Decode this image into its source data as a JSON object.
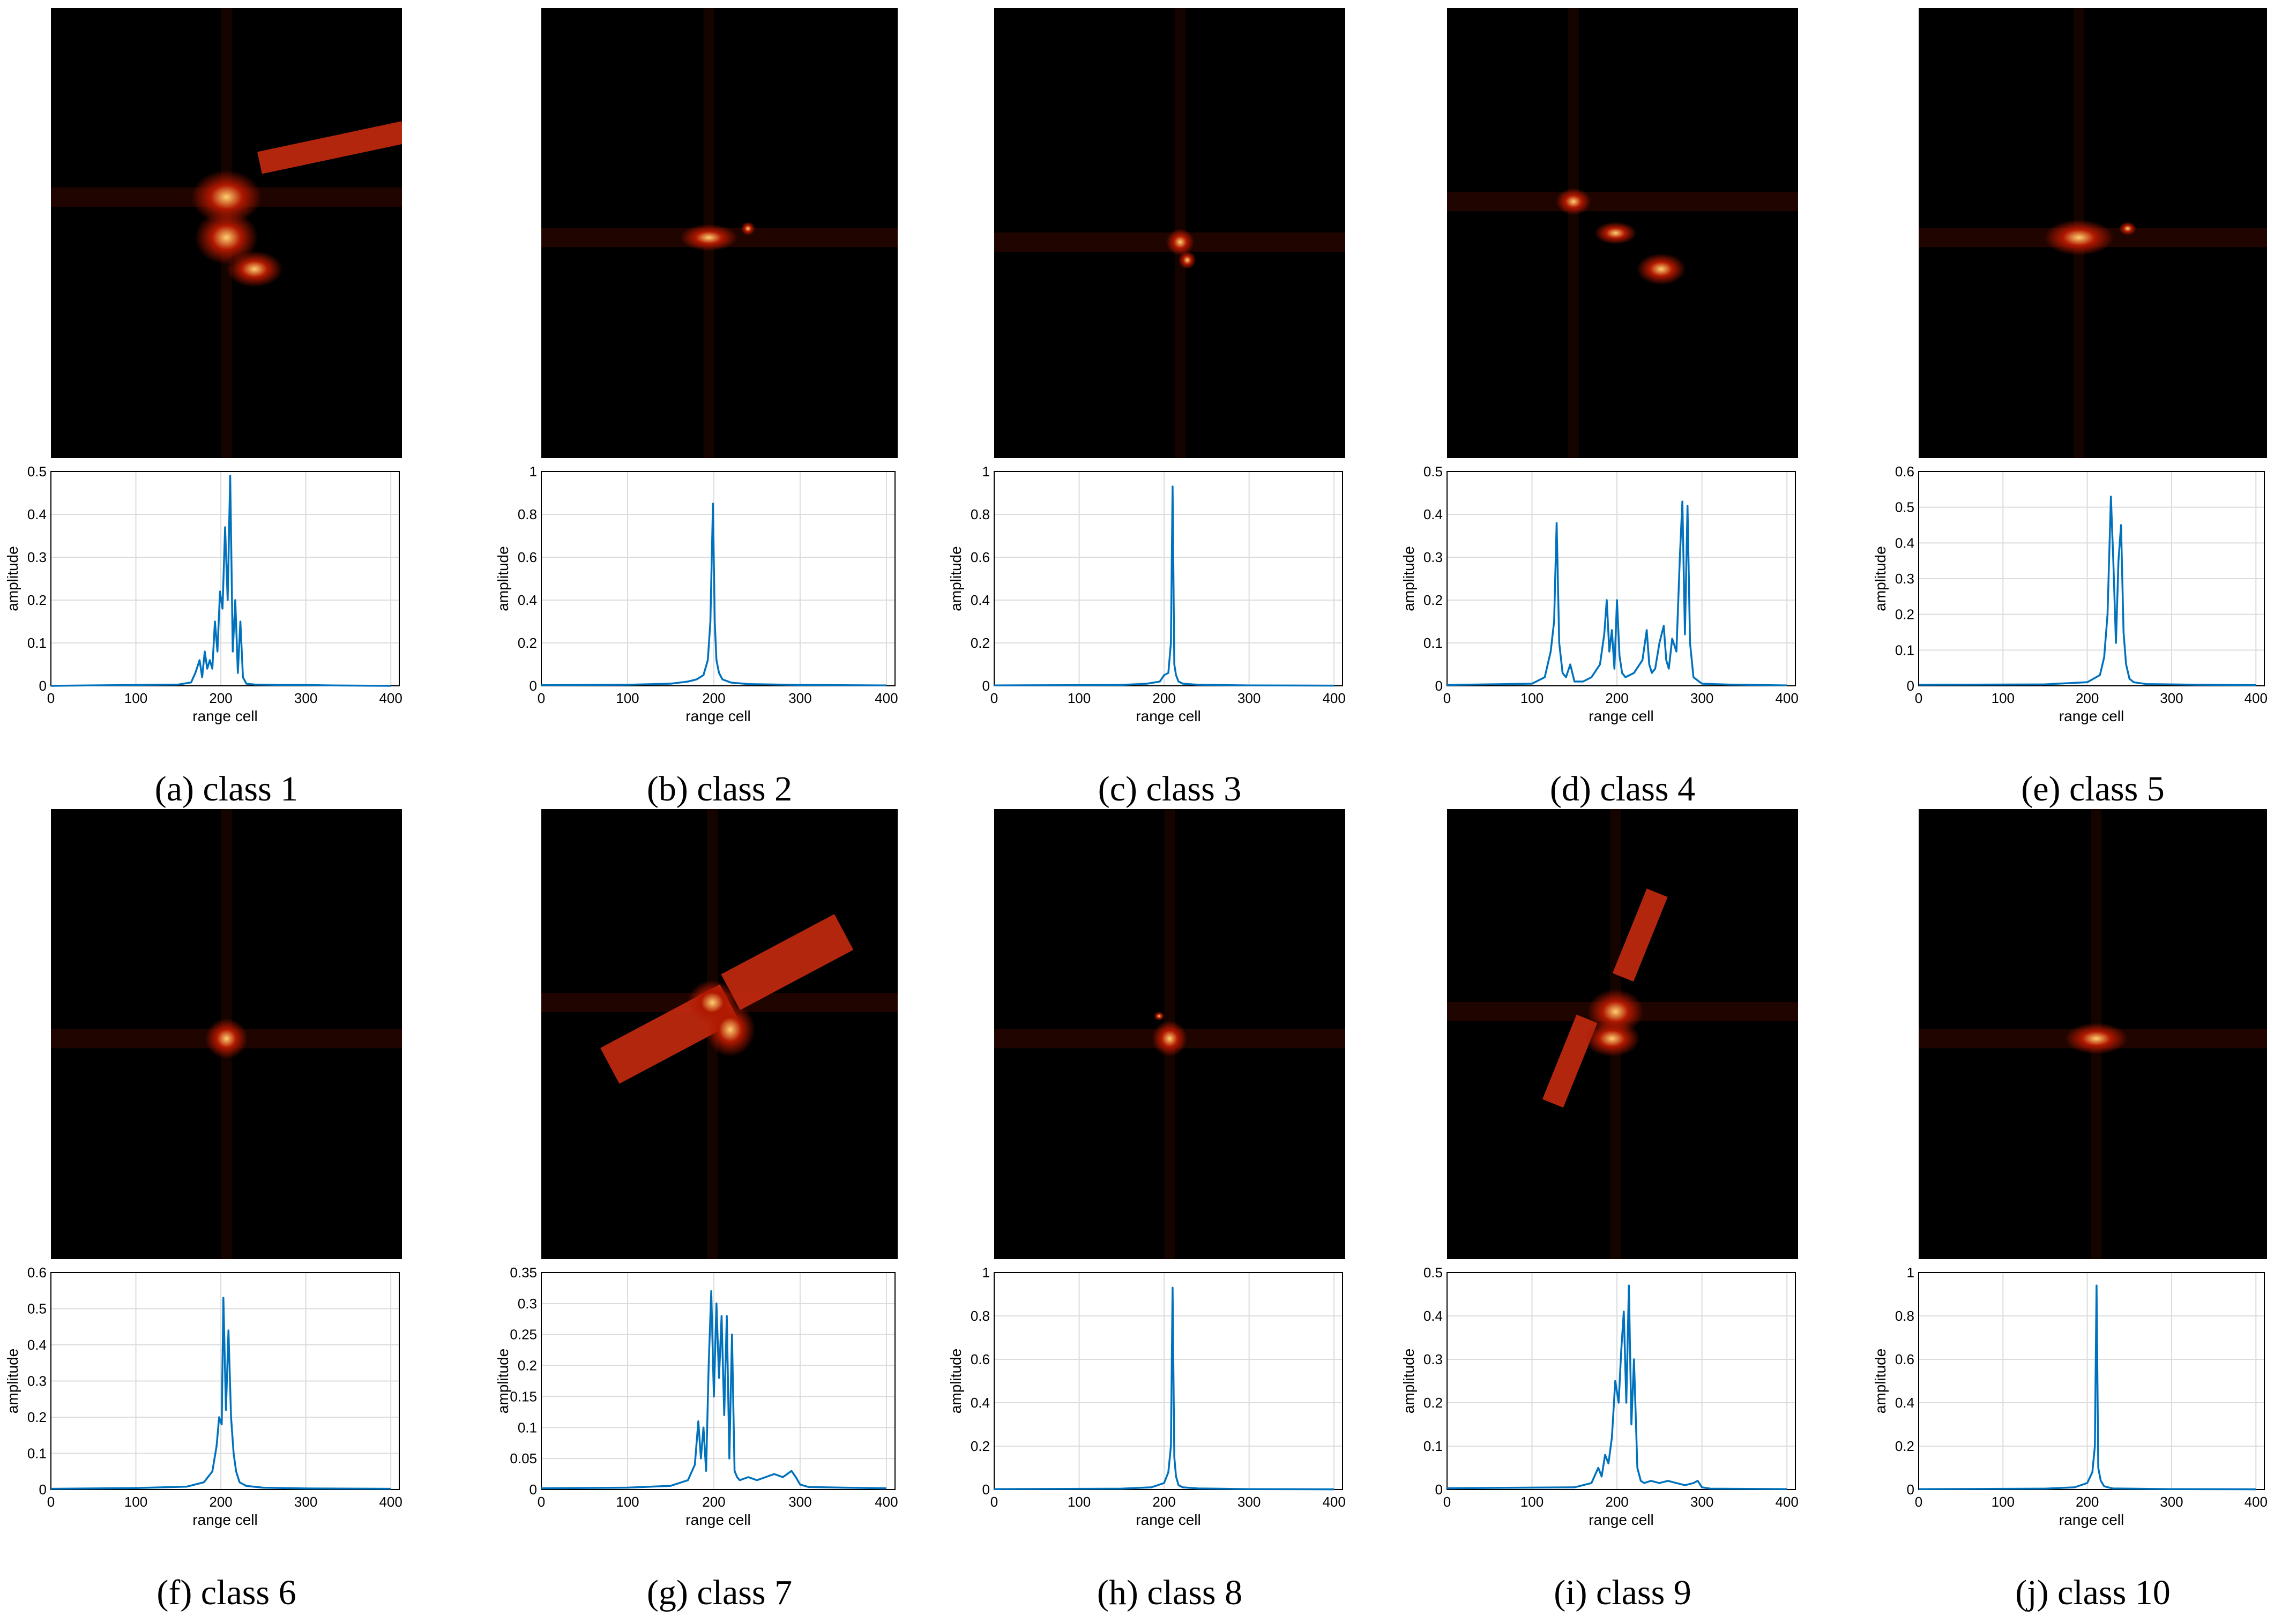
{
  "panels": [
    {
      "caption": "(a) class 1"
    },
    {
      "caption": "(b) class 2"
    },
    {
      "caption": "(c) class 3"
    },
    {
      "caption": "(d) class 4"
    },
    {
      "caption": "(e) class 5"
    },
    {
      "caption": "(f) class 6"
    },
    {
      "caption": "(g) class 7"
    },
    {
      "caption": "(h) class 8"
    },
    {
      "caption": "(i) class 9"
    },
    {
      "caption": "(j) class 10"
    }
  ],
  "colors": {
    "line": "#0072BD",
    "grid": "#dcdcdc",
    "image_bg": "#000000",
    "hot_mid": "#b01800",
    "hot_high": "#ffd070"
  },
  "chart_data": [
    {
      "type": "line",
      "panel": "a",
      "xlabel": "range cell",
      "ylabel": "amplitude",
      "xlim": [
        0,
        410
      ],
      "ylim": [
        0,
        0.5
      ],
      "xticks": [
        "0",
        "100",
        "200",
        "300",
        "400"
      ],
      "yticks": [
        "0",
        "0.1",
        "0.2",
        "0.3",
        "0.4",
        "0.5"
      ],
      "x": [
        0,
        150,
        165,
        170,
        175,
        178,
        181,
        184,
        187,
        190,
        193,
        196,
        199,
        202,
        205,
        208,
        211,
        214,
        217,
        220,
        223,
        226,
        230,
        240,
        270,
        300,
        330,
        400
      ],
      "values": [
        0,
        0.003,
        0.008,
        0.03,
        0.06,
        0.02,
        0.08,
        0.04,
        0.06,
        0.04,
        0.15,
        0.08,
        0.22,
        0.18,
        0.37,
        0.2,
        0.49,
        0.08,
        0.2,
        0.03,
        0.15,
        0.02,
        0.005,
        0.003,
        0.002,
        0.002,
        0.001,
        0
      ]
    },
    {
      "type": "line",
      "panel": "b",
      "xlabel": "range cell",
      "ylabel": "amplitude",
      "xlim": [
        0,
        410
      ],
      "ylim": [
        0,
        1
      ],
      "xticks": [
        "0",
        "100",
        "200",
        "300",
        "400"
      ],
      "yticks": [
        "0",
        "0.2",
        "0.4",
        "0.6",
        "0.8",
        "1"
      ],
      "x": [
        0,
        100,
        150,
        170,
        180,
        188,
        193,
        196,
        199,
        201,
        203,
        206,
        210,
        220,
        240,
        300,
        400
      ],
      "values": [
        0.003,
        0.005,
        0.01,
        0.02,
        0.03,
        0.05,
        0.12,
        0.3,
        0.85,
        0.3,
        0.12,
        0.06,
        0.03,
        0.015,
        0.008,
        0.004,
        0.002
      ]
    },
    {
      "type": "line",
      "panel": "c",
      "xlabel": "range cell",
      "ylabel": "amplitude",
      "xlim": [
        0,
        410
      ],
      "ylim": [
        0,
        1
      ],
      "xticks": [
        "0",
        "100",
        "200",
        "300",
        "400"
      ],
      "yticks": [
        "0",
        "0.2",
        "0.4",
        "0.6",
        "0.8",
        "1"
      ],
      "x": [
        0,
        150,
        180,
        195,
        200,
        205,
        208,
        210,
        212,
        214,
        217,
        222,
        240,
        300,
        400
      ],
      "values": [
        0.002,
        0.004,
        0.01,
        0.02,
        0.05,
        0.06,
        0.2,
        0.93,
        0.1,
        0.05,
        0.02,
        0.01,
        0.005,
        0.002,
        0.001
      ]
    },
    {
      "type": "line",
      "panel": "d",
      "xlabel": "range cell",
      "ylabel": "amplitude",
      "xlim": [
        0,
        410
      ],
      "ylim": [
        0,
        0.5
      ],
      "xticks": [
        "0",
        "100",
        "200",
        "300",
        "400"
      ],
      "yticks": [
        "0",
        "0.1",
        "0.2",
        "0.3",
        "0.4",
        "0.5"
      ],
      "x": [
        0,
        100,
        115,
        122,
        126,
        129,
        132,
        136,
        140,
        145,
        150,
        160,
        170,
        180,
        185,
        188,
        191,
        194,
        197,
        200,
        203,
        206,
        210,
        220,
        230,
        235,
        238,
        241,
        245,
        250,
        255,
        258,
        261,
        265,
        270,
        274,
        277,
        280,
        283,
        286,
        290,
        300,
        330,
        400
      ],
      "values": [
        0.002,
        0.005,
        0.02,
        0.08,
        0.15,
        0.38,
        0.1,
        0.03,
        0.02,
        0.05,
        0.01,
        0.01,
        0.02,
        0.05,
        0.12,
        0.2,
        0.08,
        0.13,
        0.04,
        0.2,
        0.07,
        0.03,
        0.02,
        0.03,
        0.06,
        0.13,
        0.05,
        0.03,
        0.04,
        0.1,
        0.14,
        0.06,
        0.04,
        0.11,
        0.08,
        0.3,
        0.43,
        0.12,
        0.42,
        0.1,
        0.02,
        0.005,
        0.003,
        0.001
      ]
    },
    {
      "type": "line",
      "panel": "e",
      "xlabel": "range cell",
      "ylabel": "amplitude",
      "xlim": [
        0,
        410
      ],
      "ylim": [
        0,
        0.6
      ],
      "xticks": [
        "0",
        "100",
        "200",
        "300",
        "400"
      ],
      "yticks": [
        "0",
        "0.1",
        "0.2",
        "0.3",
        "0.4",
        "0.5",
        "0.6"
      ],
      "x": [
        0,
        150,
        200,
        215,
        220,
        224,
        228,
        231,
        234,
        237,
        240,
        243,
        246,
        250,
        255,
        270,
        330,
        400
      ],
      "values": [
        0.003,
        0.004,
        0.01,
        0.03,
        0.08,
        0.2,
        0.53,
        0.34,
        0.12,
        0.35,
        0.45,
        0.15,
        0.06,
        0.02,
        0.01,
        0.005,
        0.003,
        0.002
      ]
    },
    {
      "type": "line",
      "panel": "f",
      "xlabel": "range cell",
      "ylabel": "amplitude",
      "xlim": [
        0,
        410
      ],
      "ylim": [
        0,
        0.6
      ],
      "xticks": [
        "0",
        "100",
        "200",
        "300",
        "400"
      ],
      "yticks": [
        "0",
        "0.1",
        "0.2",
        "0.3",
        "0.4",
        "0.5",
        "0.6"
      ],
      "x": [
        0,
        100,
        160,
        180,
        190,
        195,
        198,
        201,
        203,
        206,
        209,
        212,
        215,
        218,
        222,
        230,
        250,
        300,
        400
      ],
      "values": [
        0.002,
        0.004,
        0.008,
        0.02,
        0.05,
        0.12,
        0.2,
        0.18,
        0.53,
        0.22,
        0.44,
        0.2,
        0.1,
        0.05,
        0.02,
        0.01,
        0.005,
        0.003,
        0.002
      ]
    },
    {
      "type": "line",
      "panel": "g",
      "xlabel": "range cell",
      "ylabel": "amplitude",
      "xlim": [
        0,
        410
      ],
      "ylim": [
        0,
        0.35
      ],
      "xticks": [
        "0",
        "100",
        "200",
        "300",
        "400"
      ],
      "yticks": [
        "0",
        "0.05",
        "0.1",
        "0.15",
        "0.2",
        "0.25",
        "0.3",
        "0.35"
      ],
      "x": [
        0,
        100,
        150,
        170,
        178,
        182,
        185,
        188,
        191,
        194,
        197,
        200,
        203,
        206,
        209,
        212,
        215,
        218,
        221,
        224,
        227,
        230,
        240,
        250,
        260,
        270,
        280,
        290,
        295,
        300,
        310,
        350,
        400
      ],
      "values": [
        0.002,
        0.003,
        0.006,
        0.015,
        0.04,
        0.11,
        0.05,
        0.1,
        0.03,
        0.2,
        0.32,
        0.15,
        0.3,
        0.18,
        0.28,
        0.12,
        0.28,
        0.05,
        0.25,
        0.03,
        0.02,
        0.015,
        0.02,
        0.015,
        0.02,
        0.025,
        0.02,
        0.03,
        0.02,
        0.008,
        0.004,
        0.003,
        0.002
      ]
    },
    {
      "type": "line",
      "panel": "h",
      "xlabel": "range cell",
      "ylabel": "amplitude",
      "xlim": [
        0,
        410
      ],
      "ylim": [
        0,
        1
      ],
      "xticks": [
        "0",
        "100",
        "200",
        "300",
        "400"
      ],
      "yticks": [
        "0",
        "0.2",
        "0.4",
        "0.6",
        "0.8",
        "1"
      ],
      "x": [
        0,
        150,
        185,
        200,
        205,
        208,
        210,
        212,
        214,
        217,
        222,
        240,
        300,
        400
      ],
      "values": [
        0.002,
        0.004,
        0.01,
        0.03,
        0.08,
        0.2,
        0.93,
        0.15,
        0.06,
        0.02,
        0.01,
        0.005,
        0.002,
        0.001
      ]
    },
    {
      "type": "line",
      "panel": "i",
      "xlabel": "range cell",
      "ylabel": "amplitude",
      "xlim": [
        0,
        410
      ],
      "ylim": [
        0,
        0.5
      ],
      "xticks": [
        "0",
        "100",
        "200",
        "300",
        "400"
      ],
      "yticks": [
        "0",
        "0.1",
        "0.2",
        "0.3",
        "0.4",
        "0.5"
      ],
      "x": [
        0,
        150,
        170,
        178,
        182,
        186,
        190,
        194,
        198,
        202,
        205,
        208,
        211,
        214,
        217,
        220,
        224,
        228,
        232,
        240,
        250,
        260,
        270,
        280,
        290,
        295,
        300,
        310,
        400
      ],
      "values": [
        0.003,
        0.005,
        0.015,
        0.05,
        0.03,
        0.08,
        0.06,
        0.12,
        0.25,
        0.2,
        0.32,
        0.41,
        0.2,
        0.47,
        0.15,
        0.3,
        0.05,
        0.02,
        0.015,
        0.02,
        0.015,
        0.02,
        0.015,
        0.01,
        0.015,
        0.02,
        0.005,
        0.002,
        0.001
      ]
    },
    {
      "type": "line",
      "panel": "j",
      "xlabel": "range cell",
      "ylabel": "amplitude",
      "xlim": [
        0,
        410
      ],
      "ylim": [
        0,
        1
      ],
      "xticks": [
        "0",
        "100",
        "200",
        "300",
        "400"
      ],
      "yticks": [
        "0",
        "0.2",
        "0.4",
        "0.6",
        "0.8",
        "1"
      ],
      "x": [
        0,
        150,
        185,
        200,
        206,
        209,
        211,
        213,
        216,
        220,
        230,
        300,
        400
      ],
      "values": [
        0.002,
        0.004,
        0.01,
        0.03,
        0.08,
        0.2,
        0.94,
        0.1,
        0.04,
        0.015,
        0.005,
        0.002,
        0.001
      ]
    }
  ]
}
